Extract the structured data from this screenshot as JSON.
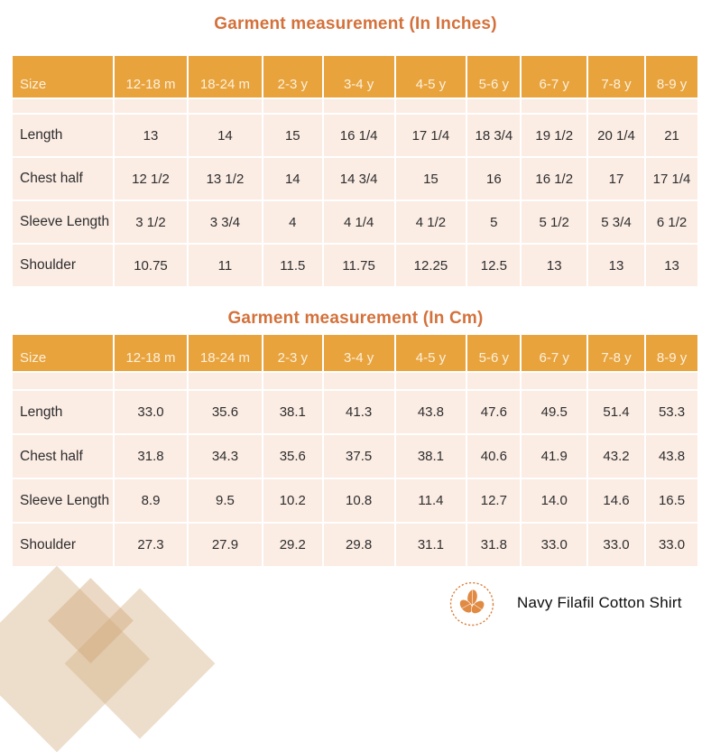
{
  "tables": [
    {
      "title": "Garment measurement (In Inches)",
      "columns": [
        "Size",
        "12-18 m",
        "18-24 m",
        "2-3 y",
        "3-4 y",
        "4-5 y",
        "5-6 y",
        "6-7 y",
        "7-8 y",
        "8-9 y"
      ],
      "rows": [
        {
          "label": "Length",
          "values": [
            "13",
            "14",
            "15",
            "16 1/4",
            "17 1/4",
            "18 3/4",
            "19 1/2",
            "20 1/4",
            "21"
          ]
        },
        {
          "label": "Chest half",
          "values": [
            "12 1/2",
            "13 1/2",
            "14",
            "14 3/4",
            "15",
            "16",
            "16 1/2",
            "17",
            "17 1/4"
          ]
        },
        {
          "label": "Sleeve Length",
          "values": [
            "3 1/2",
            "3 3/4",
            "4",
            "4 1/4",
            "4 1/2",
            "5",
            "5 1/2",
            "5 3/4",
            "6 1/2"
          ]
        },
        {
          "label": "Shoulder",
          "values": [
            "10.75",
            "11",
            "11.5",
            "11.75",
            "12.25",
            "12.5",
            "13",
            "13",
            "13"
          ]
        }
      ]
    },
    {
      "title": "Garment measurement (In Cm)",
      "columns": [
        "Size",
        "12-18 m",
        "18-24 m",
        "2-3 y",
        "3-4 y",
        "4-5 y",
        "5-6 y",
        "6-7 y",
        "7-8 y",
        "8-9 y"
      ],
      "rows": [
        {
          "label": "Length",
          "values": [
            "33.0",
            "35.6",
            "38.1",
            "41.3",
            "43.8",
            "47.6",
            "49.5",
            "51.4",
            "53.3"
          ]
        },
        {
          "label": "Chest half",
          "values": [
            "31.8",
            "34.3",
            "35.6",
            "37.5",
            "38.1",
            "40.6",
            "41.9",
            "43.2",
            "43.8"
          ]
        },
        {
          "label": "Sleeve Length",
          "values": [
            "8.9",
            "9.5",
            "10.2",
            "10.8",
            "11.4",
            "12.7",
            "14.0",
            "14.6",
            "16.5"
          ]
        },
        {
          "label": "Shoulder",
          "values": [
            "27.3",
            "27.9",
            "29.2",
            "29.8",
            "31.1",
            "31.8",
            "33.0",
            "33.0",
            "33.0"
          ]
        }
      ]
    }
  ],
  "footer": {
    "product_name": "Navy Filafil Cotton Shirt",
    "logo_icon": "leaf-badge-logo"
  },
  "colors": {
    "header_background": "#e9a33c",
    "header_text": "#faf1df",
    "title_text": "#d4713b",
    "row_background": "#fbece4",
    "grid_line": "#ffffff",
    "body_text": "#2e2e2e",
    "logo_orange": "#d9803f",
    "decor_tan": "#d5b084"
  }
}
